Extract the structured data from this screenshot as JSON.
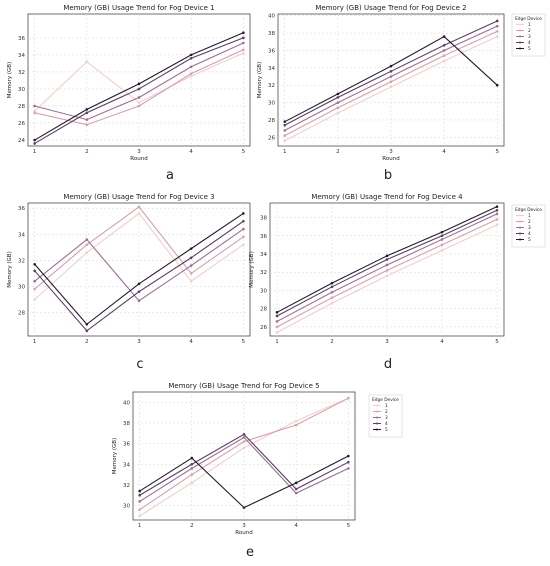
{
  "panel_labels": [
    "a",
    "b",
    "c",
    "d",
    "e"
  ],
  "chart_data": [
    {
      "type": "line",
      "title": "Memory (GB) Usage Trend for Fog Device 1",
      "xlabel": "Round",
      "ylabel": "Memory (GB)",
      "x": [
        1,
        2,
        3,
        4,
        5
      ],
      "ylim": [
        23.3,
        38.8
      ],
      "yticks": [
        24,
        26,
        28,
        30,
        32,
        34,
        36
      ],
      "grid": true,
      "legend": null,
      "series": [
        {
          "name": "1",
          "color": "#f2cfc8",
          "values": [
            27.4,
            33.2,
            28.4,
            31.5,
            34.2
          ]
        },
        {
          "name": "2",
          "color": "#d6a0ad",
          "values": [
            27.2,
            25.8,
            28.0,
            31.8,
            34.6
          ]
        },
        {
          "name": "3",
          "color": "#9c6e97",
          "values": [
            28.0,
            26.4,
            29.0,
            32.6,
            35.4
          ]
        },
        {
          "name": "4",
          "color": "#5b3f67",
          "values": [
            23.6,
            27.2,
            30.0,
            33.6,
            36.0
          ]
        },
        {
          "name": "5",
          "color": "#231b2b",
          "values": [
            24.0,
            27.6,
            30.6,
            34.0,
            36.6
          ]
        }
      ]
    },
    {
      "type": "line",
      "title": "Memory (GB) Usage Trend for Fog Device 2",
      "xlabel": "Round",
      "ylabel": "Memory (GB)",
      "x": [
        1,
        2,
        3,
        4,
        5
      ],
      "ylim": [
        25.0,
        40.2
      ],
      "yticks": [
        26,
        28,
        30,
        32,
        34,
        36,
        38,
        40
      ],
      "grid": true,
      "legend": {
        "title": "Edge Device",
        "entries": [
          "1",
          "2",
          "3",
          "4",
          "5"
        ],
        "placement": "outside-right"
      },
      "series": [
        {
          "name": "1",
          "color": "#f2cfc8",
          "values": [
            25.6,
            28.8,
            31.8,
            34.8,
            37.6
          ]
        },
        {
          "name": "2",
          "color": "#d6a0ad",
          "values": [
            26.2,
            29.4,
            32.4,
            35.4,
            38.2
          ]
        },
        {
          "name": "3",
          "color": "#9c6e97",
          "values": [
            26.8,
            30.0,
            33.0,
            36.0,
            38.8
          ]
        },
        {
          "name": "4",
          "color": "#5b3f67",
          "values": [
            27.4,
            30.6,
            33.6,
            36.6,
            39.4
          ]
        },
        {
          "name": "5",
          "color": "#231b2b",
          "values": [
            27.8,
            31.0,
            34.2,
            37.6,
            32.0
          ]
        }
      ]
    },
    {
      "type": "line",
      "title": "Memory (GB) Usage Trend for Fog Device 3",
      "xlabel": "",
      "ylabel": "Memory (GB)",
      "x": [
        1,
        2,
        3,
        4,
        5
      ],
      "ylim": [
        26.2,
        36.4
      ],
      "yticks": [
        28,
        30,
        32,
        34,
        36
      ],
      "grid": true,
      "legend": null,
      "series": [
        {
          "name": "1",
          "color": "#f2cfc8",
          "values": [
            29.0,
            32.6,
            35.6,
            30.4,
            33.2
          ]
        },
        {
          "name": "2",
          "color": "#d6a0ad",
          "values": [
            29.8,
            33.2,
            36.1,
            31.0,
            33.8
          ]
        },
        {
          "name": "3",
          "color": "#9c6e97",
          "values": [
            30.4,
            33.6,
            28.9,
            31.6,
            34.4
          ]
        },
        {
          "name": "4",
          "color": "#5b3f67",
          "values": [
            31.2,
            26.6,
            29.6,
            32.2,
            35.0
          ]
        },
        {
          "name": "5",
          "color": "#231b2b",
          "values": [
            31.7,
            27.1,
            30.2,
            32.9,
            35.6
          ]
        }
      ]
    },
    {
      "type": "line",
      "title": "Memory (GB) Usage Trend for Fog Device 4",
      "xlabel": "",
      "ylabel": "Memory (GB)",
      "x": [
        1,
        2,
        3,
        4,
        5
      ],
      "ylim": [
        25.0,
        39.6
      ],
      "yticks": [
        26,
        28,
        30,
        32,
        34,
        36,
        38
      ],
      "grid": true,
      "legend": {
        "title": "Edge Device",
        "entries": [
          "1",
          "2",
          "3",
          "4",
          "5"
        ],
        "placement": "outside-right"
      },
      "series": [
        {
          "name": "1",
          "color": "#f2cfc8",
          "values": [
            25.4,
            28.6,
            31.6,
            34.4,
            37.2
          ]
        },
        {
          "name": "2",
          "color": "#d6a0ad",
          "values": [
            26.0,
            29.2,
            32.2,
            35.0,
            37.8
          ]
        },
        {
          "name": "3",
          "color": "#9c6e97",
          "values": [
            26.6,
            29.8,
            32.8,
            35.6,
            38.4
          ]
        },
        {
          "name": "4",
          "color": "#5b3f67",
          "values": [
            27.2,
            30.4,
            33.4,
            36.0,
            38.8
          ]
        },
        {
          "name": "5",
          "color": "#231b2b",
          "values": [
            27.6,
            30.8,
            33.8,
            36.4,
            39.2
          ]
        }
      ]
    },
    {
      "type": "line",
      "title": "Memory (GB) Usage Trend for Fog Device 5",
      "xlabel": "Round",
      "ylabel": "Memory (GB)",
      "x": [
        1,
        2,
        3,
        4,
        5
      ],
      "ylim": [
        28.6,
        41.0
      ],
      "yticks": [
        30,
        32,
        34,
        36,
        38,
        40
      ],
      "grid": true,
      "legend": {
        "title": "Edge Device",
        "entries": [
          "1",
          "2",
          "3",
          "4",
          "5"
        ],
        "placement": "outside-right"
      },
      "series": [
        {
          "name": "1",
          "color": "#f2cfc8",
          "values": [
            29.0,
            32.2,
            35.6,
            38.2,
            40.4
          ]
        },
        {
          "name": "2",
          "color": "#d6a0ad",
          "values": [
            29.6,
            33.0,
            36.2,
            37.8,
            40.4
          ]
        },
        {
          "name": "3",
          "color": "#9c6e97",
          "values": [
            30.4,
            33.6,
            36.6,
            31.2,
            33.6
          ]
        },
        {
          "name": "4",
          "color": "#5b3f67",
          "values": [
            31.0,
            34.0,
            36.9,
            31.6,
            34.2
          ]
        },
        {
          "name": "5",
          "color": "#231b2b",
          "values": [
            31.4,
            34.6,
            29.8,
            32.2,
            34.8
          ]
        }
      ]
    }
  ]
}
